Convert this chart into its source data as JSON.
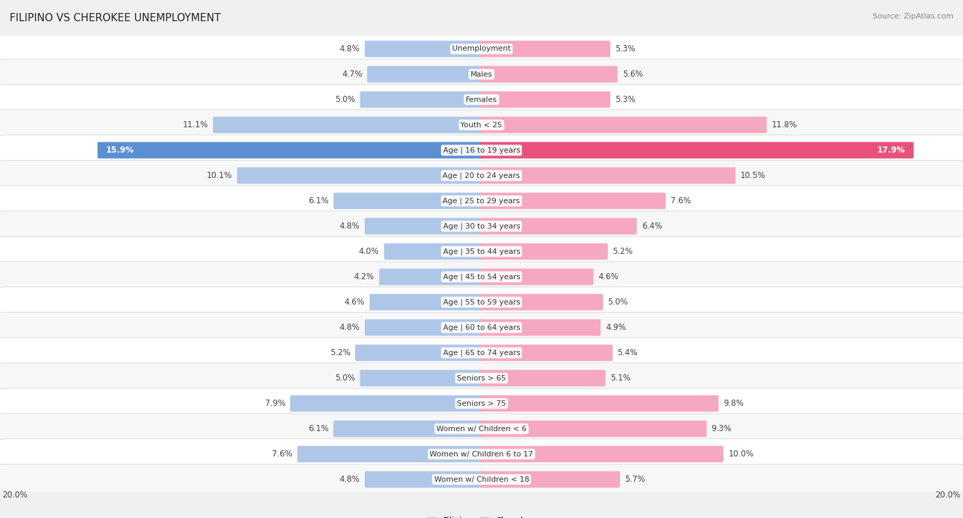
{
  "title": "FILIPINO VS CHEROKEE UNEMPLOYMENT",
  "source": "Source: ZipAtlas.com",
  "categories": [
    "Unemployment",
    "Males",
    "Females",
    "Youth < 25",
    "Age | 16 to 19 years",
    "Age | 20 to 24 years",
    "Age | 25 to 29 years",
    "Age | 30 to 34 years",
    "Age | 35 to 44 years",
    "Age | 45 to 54 years",
    "Age | 55 to 59 years",
    "Age | 60 to 64 years",
    "Age | 65 to 74 years",
    "Seniors > 65",
    "Seniors > 75",
    "Women w/ Children < 6",
    "Women w/ Children 6 to 17",
    "Women w/ Children < 18"
  ],
  "filipino": [
    4.8,
    4.7,
    5.0,
    11.1,
    15.9,
    10.1,
    6.1,
    4.8,
    4.0,
    4.2,
    4.6,
    4.8,
    5.2,
    5.0,
    7.9,
    6.1,
    7.6,
    4.8
  ],
  "cherokee": [
    5.3,
    5.6,
    5.3,
    11.8,
    17.9,
    10.5,
    7.6,
    6.4,
    5.2,
    4.6,
    5.0,
    4.9,
    5.4,
    5.1,
    9.8,
    9.3,
    10.0,
    5.7
  ],
  "filipino_color": "#aec6e8",
  "cherokee_color": "#f5a8bf",
  "filipino_highlight_color": "#5b8fd4",
  "cherokee_highlight_color": "#e8527a",
  "row_bg_even": "#f7f7f7",
  "row_bg_odd": "#ffffff",
  "row_border_color": "#e0e0e0",
  "bg_color": "#f0f0f0",
  "max_val": 20.0,
  "label_fontsize": 8.5,
  "title_fontsize": 11,
  "source_fontsize": 8,
  "cat_fontsize": 8,
  "legend_filipino": "Filipino",
  "legend_cherokee": "Cherokee"
}
